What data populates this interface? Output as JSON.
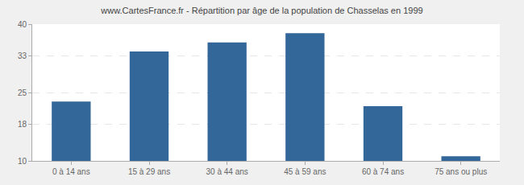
{
  "chart_data": {
    "type": "bar",
    "title": "www.CartesFrance.fr - Répartition par âge de la population de Chasselas en 1999",
    "categories": [
      "0 à 14 ans",
      "15 à 29 ans",
      "30 à 44 ans",
      "45 à 59 ans",
      "60 à 74 ans",
      "75 ans ou plus"
    ],
    "values": [
      23,
      34,
      36,
      38,
      22,
      11
    ],
    "color": "#336699",
    "ylim": [
      10,
      40
    ],
    "yticks": [
      10,
      18,
      25,
      33,
      40
    ],
    "grid": true
  }
}
